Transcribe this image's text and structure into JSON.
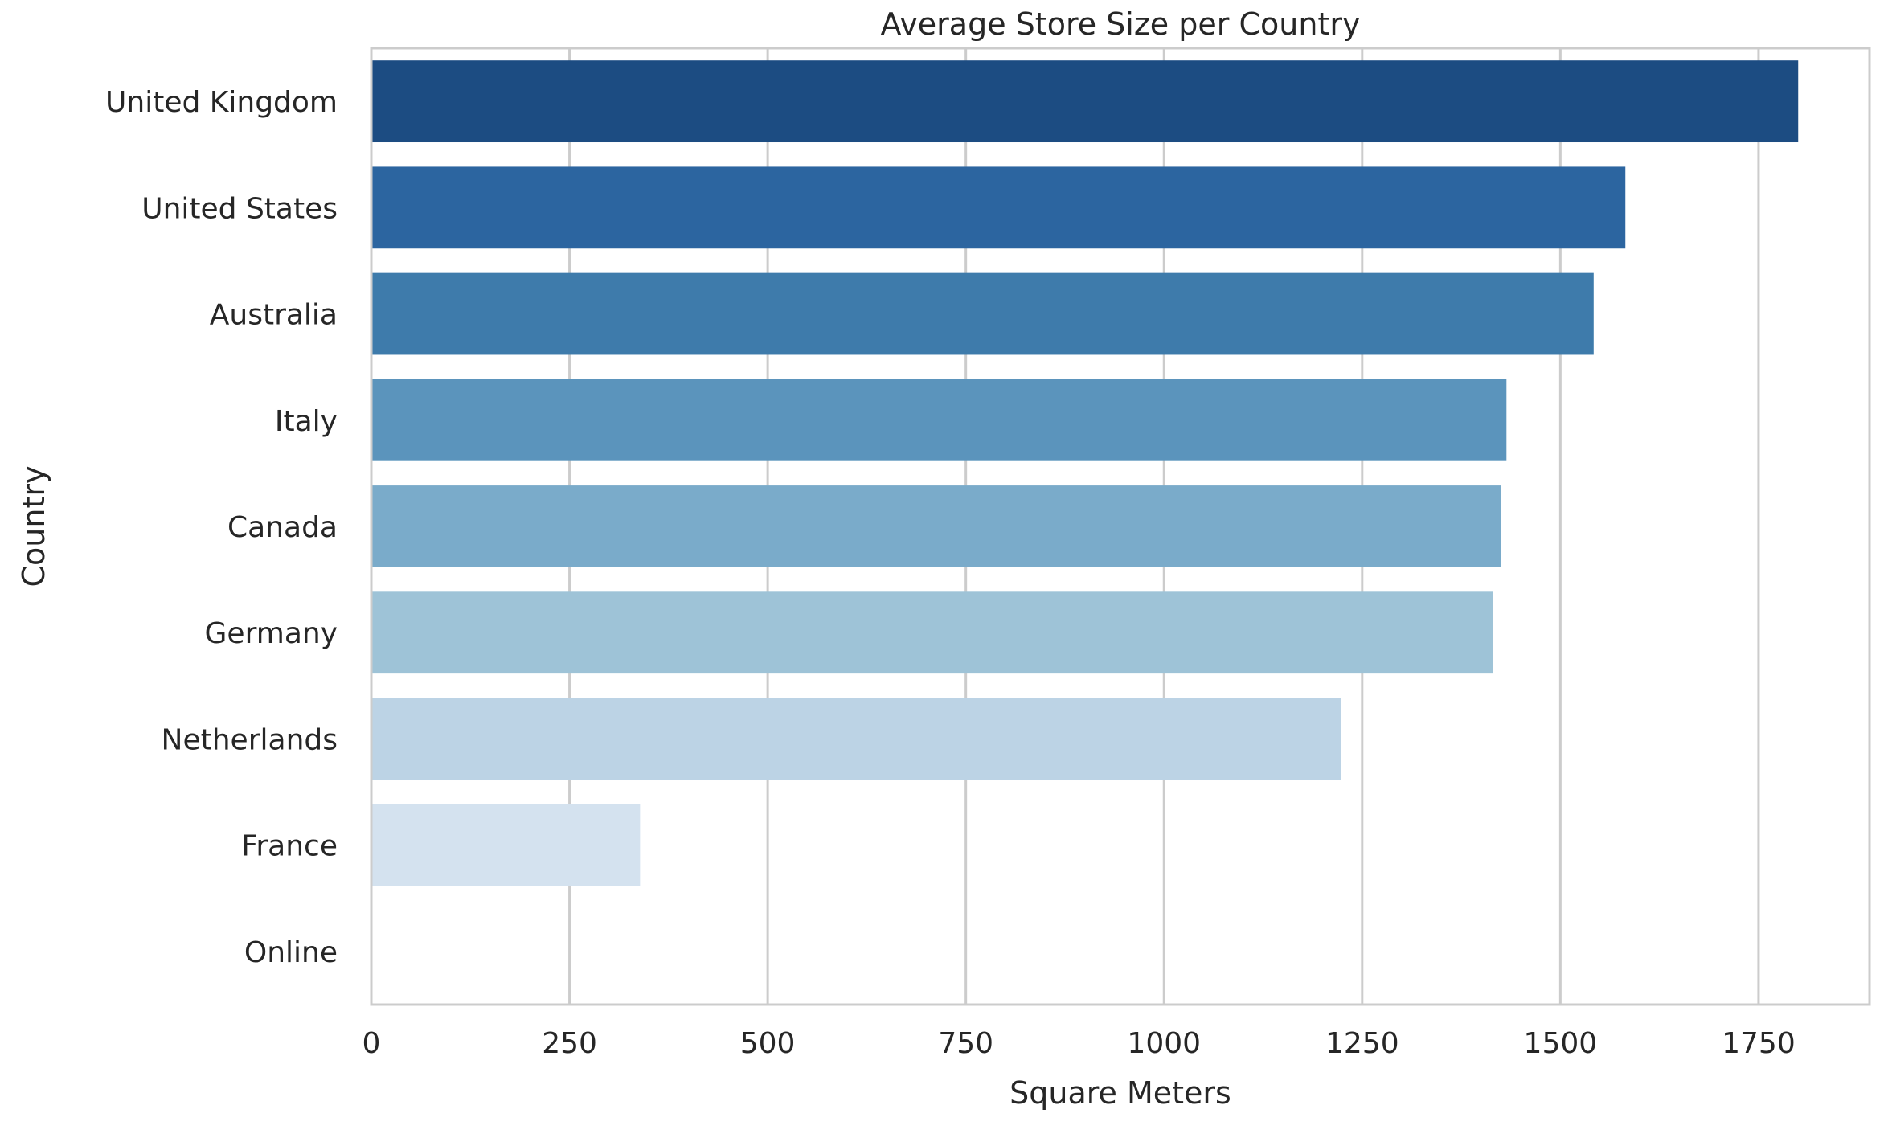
{
  "chart_data": {
    "type": "bar",
    "orientation": "horizontal",
    "title": "Average Store Size per Country",
    "xlabel": "Square Meters",
    "ylabel": "Country",
    "categories": [
      "United Kingdom",
      "United States",
      "Australia",
      "Italy",
      "Canada",
      "Germany",
      "Netherlands",
      "France",
      "Online"
    ],
    "values": [
      1800,
      1582,
      1542,
      1432,
      1425,
      1415,
      1223,
      339,
      0
    ],
    "xlim": [
      0,
      1890
    ],
    "xticks": [
      0,
      250,
      500,
      750,
      1000,
      1250,
      1500,
      1750
    ],
    "grid": "vertical",
    "colors": [
      "#1c4c82",
      "#2c65a0",
      "#3e7bab",
      "#5b94bc",
      "#7aabca",
      "#9ec3d7",
      "#bcd3e5",
      "#d4e2ef",
      "#e6eef6"
    ],
    "axis_color": "#cccccc",
    "grid_color": "#cccccc"
  }
}
